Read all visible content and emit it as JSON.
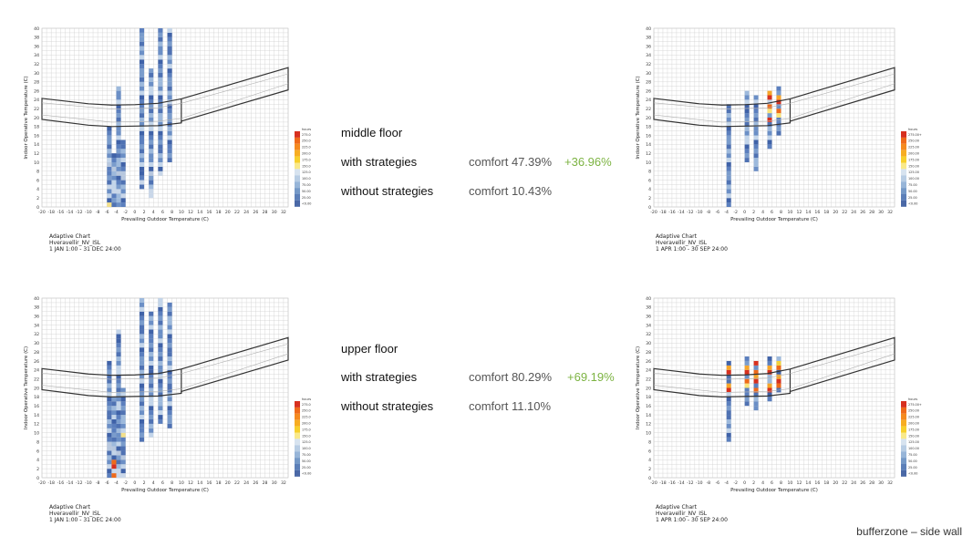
{
  "colors": {
    "accent_green": "#7cb342",
    "comfort_band": "#333333",
    "grid": "#cfcfcf"
  },
  "legend_scale": [
    {
      "color": "#d7301f"
    },
    {
      "color": "#ef6a1a"
    },
    {
      "color": "#f58a1f"
    },
    {
      "color": "#f7ad22"
    },
    {
      "color": "#f7d02c"
    },
    {
      "color": "#f9e98a"
    },
    {
      "color": "#d7e3ef"
    },
    {
      "color": "#b8cde4"
    },
    {
      "color": "#97b5d8"
    },
    {
      "color": "#7599c7"
    },
    {
      "color": "#5c7fb8"
    },
    {
      "color": "#4a68a6"
    }
  ],
  "sections": [
    {
      "floor_label": "middle floor",
      "with_label": "with strategies",
      "with_comfort": "comfort 47.39%",
      "delta": "+36.96%",
      "without_label": "without strategies",
      "without_comfort": "comfort 10.43%"
    },
    {
      "floor_label": "upper floor",
      "with_label": "with strategies",
      "with_comfort": "comfort 80.29%",
      "delta": "+69.19%",
      "without_label": "without strategies",
      "without_comfort": "comfort 11.10%"
    }
  ],
  "footer": "bufferzone – side wall",
  "chart_data": [
    {
      "type": "heatmap",
      "id": "middle-without",
      "title": "Adaptive Chart",
      "subtitle": "Hveravellir_NV_ISL",
      "period": "1 JAN 1:00 - 31 DEC 24:00",
      "xlabel": "Prevailing Outdoor Temperature (C)",
      "ylabel": "Indoor Operative Temperature (C)",
      "xlim": [
        -20,
        33
      ],
      "ylim": [
        0,
        40
      ],
      "xticks": [
        -20,
        -18,
        -16,
        -14,
        -12,
        -10,
        -8,
        -6,
        -4,
        -2,
        0,
        2,
        4,
        6,
        8,
        10,
        12,
        14,
        16,
        18,
        20,
        22,
        24,
        26,
        28,
        30,
        32
      ],
      "yticks": [
        0,
        2,
        4,
        6,
        8,
        10,
        12,
        14,
        16,
        18,
        20,
        22,
        24,
        26,
        28,
        30,
        32,
        34,
        36,
        38,
        40
      ],
      "legend_title": "hours",
      "legend_labels": [
        "275.0",
        "250.0",
        "225.0",
        "200.0",
        "175.0",
        "150.0",
        "125.0",
        "100.0",
        "75.00",
        "50.00",
        "25.00",
        "<0.00"
      ],
      "columns": [
        {
          "x": -5.5,
          "y": [
            0,
            18
          ],
          "hot": 0
        },
        {
          "x": -4.5,
          "y": [
            0,
            12
          ],
          "hot": 0
        },
        {
          "x": -3.5,
          "y": [
            0,
            27
          ],
          "hot": 0
        },
        {
          "x": -2.5,
          "y": [
            0,
            15
          ],
          "hot": 0
        },
        {
          "x": 1.5,
          "y": [
            4,
            40
          ],
          "hot": 0
        },
        {
          "x": 3.5,
          "y": [
            2,
            31
          ],
          "hot": 0
        },
        {
          "x": 5.5,
          "y": [
            7,
            40
          ],
          "hot": 0
        },
        {
          "x": 7.5,
          "y": [
            10,
            40
          ],
          "hot": 0
        }
      ]
    },
    {
      "type": "heatmap",
      "id": "middle-with",
      "title": "Adaptive Chart",
      "subtitle": "Hveravellir_NV_ISL",
      "period": "1 APR 1:00 - 30 SEP 24:00",
      "xlabel": "Prevailing Outdoor Temperature (C)",
      "ylabel": "Indoor Operative Temperature (C)",
      "xlim": [
        -20,
        33
      ],
      "ylim": [
        0,
        40
      ],
      "xticks": [
        -20,
        -18,
        -16,
        -14,
        -12,
        -10,
        -8,
        -6,
        -4,
        -2,
        0,
        2,
        4,
        6,
        8,
        10,
        12,
        14,
        16,
        18,
        20,
        22,
        24,
        26,
        28,
        30,
        32
      ],
      "yticks": [
        0,
        2,
        4,
        6,
        8,
        10,
        12,
        14,
        16,
        18,
        20,
        22,
        24,
        26,
        28,
        30,
        32,
        34,
        36,
        38,
        40
      ],
      "legend_title": "hours",
      "legend_labels": [
        "275.00+",
        "250.00",
        "225.00",
        "200.00",
        "175.00",
        "150.00",
        "125.00",
        "100.00",
        "75.00",
        "50.00",
        "25.00",
        "<0.00"
      ],
      "columns": [
        {
          "x": -3.5,
          "y": [
            0,
            23
          ],
          "hot": 0
        },
        {
          "x": 0.5,
          "y": [
            10,
            26
          ],
          "hot": 0
        },
        {
          "x": 2.5,
          "y": [
            8,
            25
          ],
          "hot": 0
        },
        {
          "x": 5.5,
          "y": [
            13,
            26
          ],
          "hot": 1
        },
        {
          "x": 7.5,
          "y": [
            16,
            27
          ],
          "hot": 1
        }
      ]
    },
    {
      "type": "heatmap",
      "id": "upper-without",
      "title": "Adaptive Chart",
      "subtitle": "Hveravellir_NV_ISL",
      "period": "1 JAN 1:00 - 31 DEC 24:00",
      "xlabel": "Prevailing Outdoor Temperature (C)",
      "ylabel": "Indoor Operative Temperature (C)",
      "xlim": [
        -20,
        33
      ],
      "ylim": [
        0,
        40
      ],
      "xticks": [
        -20,
        -18,
        -16,
        -14,
        -12,
        -10,
        -8,
        -6,
        -4,
        -2,
        0,
        2,
        4,
        6,
        8,
        10,
        12,
        14,
        16,
        18,
        20,
        22,
        24,
        26,
        28,
        30,
        32
      ],
      "yticks": [
        0,
        2,
        4,
        6,
        8,
        10,
        12,
        14,
        16,
        18,
        20,
        22,
        24,
        26,
        28,
        30,
        32,
        34,
        36,
        38,
        40
      ],
      "legend_title": "hours",
      "legend_labels": [
        "275.0",
        "250.0",
        "225.0",
        "200.0",
        "175.0",
        "150.0",
        "125.0",
        "100.0",
        "75.00",
        "50.00",
        "25.00",
        "<0.00"
      ],
      "columns": [
        {
          "x": -5.5,
          "y": [
            0,
            26
          ],
          "hot": 0
        },
        {
          "x": -4.5,
          "y": [
            0,
            18
          ],
          "hot": 2
        },
        {
          "x": -3.5,
          "y": [
            0,
            33
          ],
          "hot": 0
        },
        {
          "x": -2.5,
          "y": [
            0,
            20
          ],
          "hot": 0
        },
        {
          "x": 1.5,
          "y": [
            8,
            40
          ],
          "hot": 0
        },
        {
          "x": 3.5,
          "y": [
            9,
            37
          ],
          "hot": 0
        },
        {
          "x": 5.5,
          "y": [
            12,
            40
          ],
          "hot": 0
        },
        {
          "x": 7.5,
          "y": [
            11,
            39
          ],
          "hot": 0
        }
      ]
    },
    {
      "type": "heatmap",
      "id": "upper-with",
      "title": "Adaptive Chart",
      "subtitle": "Hveravellir_NV_ISL",
      "period": "1 APR 1:00 - 30 SEP 24:00",
      "xlabel": "Prevailing Outdoor Temperature (C)",
      "ylabel": "Indoor Operative Temperature (C)",
      "xlim": [
        -20,
        33
      ],
      "ylim": [
        0,
        40
      ],
      "xticks": [
        -20,
        -18,
        -16,
        -14,
        -12,
        -10,
        -8,
        -6,
        -4,
        -2,
        0,
        2,
        4,
        6,
        8,
        10,
        12,
        14,
        16,
        18,
        20,
        22,
        24,
        26,
        28,
        30,
        32
      ],
      "yticks": [
        0,
        2,
        4,
        6,
        8,
        10,
        12,
        14,
        16,
        18,
        20,
        22,
        24,
        26,
        28,
        30,
        32,
        34,
        36,
        38,
        40
      ],
      "legend_title": "hours",
      "legend_labels": [
        "275.00+",
        "250.00",
        "225.00",
        "200.00",
        "175.00",
        "150.00",
        "125.00",
        "100.00",
        "75.00",
        "50.00",
        "25.00",
        "<0.00"
      ],
      "columns": [
        {
          "x": -3.5,
          "y": [
            8,
            26
          ],
          "hot": 1
        },
        {
          "x": 0.5,
          "y": [
            16,
            27
          ],
          "hot": 1
        },
        {
          "x": 2.5,
          "y": [
            15,
            26
          ],
          "hot": 2
        },
        {
          "x": 5.5,
          "y": [
            17,
            27
          ],
          "hot": 2
        },
        {
          "x": 7.5,
          "y": [
            19,
            27
          ],
          "hot": 2
        }
      ]
    }
  ]
}
